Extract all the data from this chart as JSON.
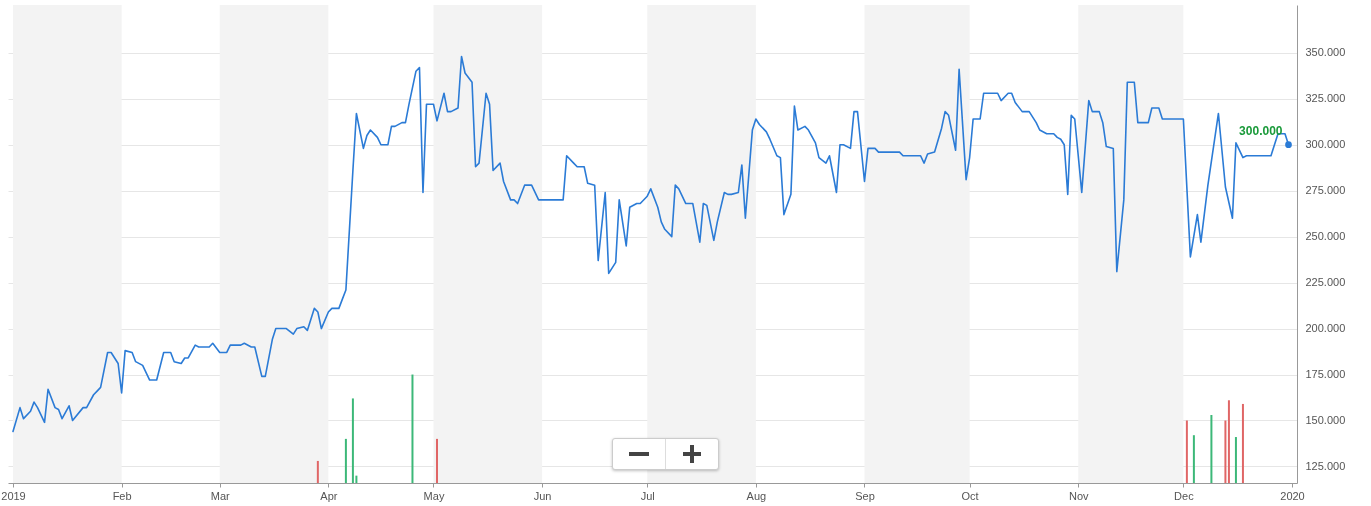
{
  "chart_data": {
    "type": "line",
    "grid": "y",
    "xlim": [
      "2019-01-01",
      "2020-01-01"
    ],
    "xticks": [
      {
        "value": "2019-01-01",
        "label": "2019"
      },
      {
        "value": "2019-02-01",
        "label": "Feb"
      },
      {
        "value": "2019-03-01",
        "label": "Mar"
      },
      {
        "value": "2019-04-01",
        "label": "Apr"
      },
      {
        "value": "2019-05-01",
        "label": "May"
      },
      {
        "value": "2019-06-01",
        "label": "Jun"
      },
      {
        "value": "2019-07-01",
        "label": "Jul"
      },
      {
        "value": "2019-08-01",
        "label": "Aug"
      },
      {
        "value": "2019-09-01",
        "label": "Sep"
      },
      {
        "value": "2019-10-01",
        "label": "Oct"
      },
      {
        "value": "2019-11-01",
        "label": "Nov"
      },
      {
        "value": "2019-12-01",
        "label": "Dec"
      },
      {
        "value": "2020-01-01",
        "label": "2020"
      }
    ],
    "ylim": [
      116,
      376
    ],
    "yticks": [
      {
        "value": 125,
        "label": "125.000"
      },
      {
        "value": 150,
        "label": "150.000"
      },
      {
        "value": 175,
        "label": "175.000"
      },
      {
        "value": 200,
        "label": "200.000"
      },
      {
        "value": 225,
        "label": "225.000"
      },
      {
        "value": 250,
        "label": "250.000"
      },
      {
        "value": 275,
        "label": "275.000"
      },
      {
        "value": 300,
        "label": "300.000"
      },
      {
        "value": 325,
        "label": "325.000"
      },
      {
        "value": 350,
        "label": "350.000"
      }
    ],
    "bands": [
      {
        "axis": "x",
        "from": "2019-01-01",
        "to": "2019-02-01",
        "color": "#f3f3f3"
      },
      {
        "axis": "x",
        "from": "2019-03-01",
        "to": "2019-04-01",
        "color": "#f3f3f3"
      },
      {
        "axis": "x",
        "from": "2019-05-01",
        "to": "2019-06-01",
        "color": "#f3f3f3"
      },
      {
        "axis": "x",
        "from": "2019-07-01",
        "to": "2019-08-01",
        "color": "#f3f3f3"
      },
      {
        "axis": "x",
        "from": "2019-09-01",
        "to": "2019-10-01",
        "color": "#f3f3f3"
      },
      {
        "axis": "x",
        "from": "2019-11-01",
        "to": "2019-12-01",
        "color": "#f3f3f3"
      }
    ],
    "annotations": [
      {
        "text": "300.000",
        "x": "2019-12-31",
        "y": 300
      }
    ],
    "series": [
      {
        "color": "#2b7bd6",
        "x": [
          "2019-01-01",
          "2019-01-03",
          "2019-01-04",
          "2019-01-06",
          "2019-01-07",
          "2019-01-08",
          "2019-01-10",
          "2019-01-11",
          "2019-01-13",
          "2019-01-14",
          "2019-01-15",
          "2019-01-17",
          "2019-01-18",
          "2019-01-21",
          "2019-01-22",
          "2019-01-24",
          "2019-01-25",
          "2019-01-26",
          "2019-01-28",
          "2019-01-29",
          "2019-01-31",
          "2019-02-01",
          "2019-02-02",
          "2019-02-04",
          "2019-02-05",
          "2019-02-07",
          "2019-02-09",
          "2019-02-11",
          "2019-02-13",
          "2019-02-15",
          "2019-02-16",
          "2019-02-18",
          "2019-02-19",
          "2019-02-20",
          "2019-02-22",
          "2019-02-23",
          "2019-02-26",
          "2019-02-27",
          "2019-03-01",
          "2019-03-03",
          "2019-03-04",
          "2019-03-07",
          "2019-03-08",
          "2019-03-10",
          "2019-03-11",
          "2019-03-13",
          "2019-03-14",
          "2019-03-16",
          "2019-03-17",
          "2019-03-20",
          "2019-03-22",
          "2019-03-23",
          "2019-03-25",
          "2019-03-26",
          "2019-03-28",
          "2019-03-29",
          "2019-03-30",
          "2019-04-01",
          "2019-04-02",
          "2019-04-04",
          "2019-04-05",
          "2019-04-06",
          "2019-04-08",
          "2019-04-09",
          "2019-04-11",
          "2019-04-12",
          "2019-04-13",
          "2019-04-15",
          "2019-04-16",
          "2019-04-18",
          "2019-04-19",
          "2019-04-20",
          "2019-04-22",
          "2019-04-23",
          "2019-04-24",
          "2019-04-26",
          "2019-04-27",
          "2019-04-28",
          "2019-04-29",
          "2019-05-01",
          "2019-05-02",
          "2019-05-04",
          "2019-05-05",
          "2019-05-06",
          "2019-05-08",
          "2019-05-09",
          "2019-05-10",
          "2019-05-12",
          "2019-05-13",
          "2019-05-14",
          "2019-05-16",
          "2019-05-17",
          "2019-05-18",
          "2019-05-20",
          "2019-05-21",
          "2019-05-23",
          "2019-05-24",
          "2019-05-25",
          "2019-05-27",
          "2019-05-29",
          "2019-05-31",
          "2019-06-07",
          "2019-06-08",
          "2019-06-10",
          "2019-06-11",
          "2019-06-13",
          "2019-06-14",
          "2019-06-16",
          "2019-06-17",
          "2019-06-19",
          "2019-06-20",
          "2019-06-22",
          "2019-06-23",
          "2019-06-25",
          "2019-06-26",
          "2019-06-28",
          "2019-06-29",
          "2019-07-01",
          "2019-07-02",
          "2019-07-04",
          "2019-07-05",
          "2019-07-06",
          "2019-07-08",
          "2019-07-09",
          "2019-07-10",
          "2019-07-12",
          "2019-07-14",
          "2019-07-16",
          "2019-07-17",
          "2019-07-18",
          "2019-07-20",
          "2019-07-21",
          "2019-07-23",
          "2019-07-24",
          "2019-07-25",
          "2019-07-27",
          "2019-07-28",
          "2019-07-29",
          "2019-07-31",
          "2019-08-01",
          "2019-08-02",
          "2019-08-04",
          "2019-08-05",
          "2019-08-07",
          "2019-08-08",
          "2019-08-09",
          "2019-08-11",
          "2019-08-12",
          "2019-08-13",
          "2019-08-15",
          "2019-08-16",
          "2019-08-18",
          "2019-08-19",
          "2019-08-21",
          "2019-08-22",
          "2019-08-24",
          "2019-08-25",
          "2019-08-26",
          "2019-08-28",
          "2019-08-29",
          "2019-08-30",
          "2019-09-01",
          "2019-09-02",
          "2019-09-04",
          "2019-09-05",
          "2019-09-11",
          "2019-09-12",
          "2019-09-17",
          "2019-09-18",
          "2019-09-19",
          "2019-09-21",
          "2019-09-23",
          "2019-09-24",
          "2019-09-25",
          "2019-09-27",
          "2019-09-28",
          "2019-09-30",
          "2019-10-01",
          "2019-10-02",
          "2019-10-04",
          "2019-10-05",
          "2019-10-09",
          "2019-10-10",
          "2019-10-12",
          "2019-10-13",
          "2019-10-14",
          "2019-10-16",
          "2019-10-18",
          "2019-10-20",
          "2019-10-21",
          "2019-10-23",
          "2019-10-25",
          "2019-10-26",
          "2019-10-27",
          "2019-10-28",
          "2019-10-29",
          "2019-10-30",
          "2019-10-31",
          "2019-11-02",
          "2019-11-04",
          "2019-11-05",
          "2019-11-07",
          "2019-11-08",
          "2019-11-09",
          "2019-11-11",
          "2019-11-12",
          "2019-11-14",
          "2019-11-15",
          "2019-11-17",
          "2019-11-18",
          "2019-11-21",
          "2019-11-22",
          "2019-11-24",
          "2019-11-25",
          "2019-12-01",
          "2019-12-03",
          "2019-12-05",
          "2019-12-06",
          "2019-12-08",
          "2019-12-11",
          "2019-12-13",
          "2019-12-15",
          "2019-12-16",
          "2019-12-18",
          "2019-12-19",
          "2019-12-26",
          "2019-12-28",
          "2019-12-30",
          "2019-12-31"
        ],
        "values": [
          144,
          157,
          151,
          155,
          160,
          157,
          149,
          167,
          157,
          156,
          151,
          158,
          150,
          157,
          157,
          164,
          166,
          168,
          187,
          187,
          181,
          165,
          188,
          187,
          182,
          180,
          172,
          172,
          187,
          187,
          182,
          181,
          184,
          184,
          191,
          190,
          190,
          192,
          187,
          187,
          191,
          191,
          192,
          190,
          190,
          174,
          174,
          194,
          200,
          200,
          197,
          200,
          201,
          199,
          211,
          209,
          200,
          209,
          211,
          211,
          216,
          221,
          286,
          317,
          298,
          305,
          308,
          304,
          300,
          300,
          310,
          310,
          312,
          312,
          322,
          340,
          342,
          274,
          322,
          322,
          313,
          328,
          318,
          318,
          320,
          348,
          339,
          334,
          288,
          290,
          328,
          322,
          286,
          290,
          280,
          270,
          270,
          268,
          278,
          278,
          270,
          270,
          294,
          290,
          288,
          288,
          279,
          278,
          237,
          274,
          230,
          236,
          270,
          245,
          266,
          268,
          268,
          272,
          276,
          266,
          258,
          254,
          250,
          278,
          276,
          268,
          268,
          247,
          268,
          267,
          248,
          258,
          274,
          273,
          273,
          274,
          289,
          260,
          308,
          314,
          311,
          307,
          303,
          294,
          293,
          262,
          273,
          321,
          308,
          310,
          308,
          301,
          293,
          290,
          294,
          274,
          300,
          300,
          298,
          318,
          318,
          280,
          298,
          298,
          296,
          296,
          294,
          294,
          290,
          295,
          296,
          309,
          318,
          316,
          297,
          341,
          281,
          293,
          314,
          314,
          328,
          328,
          324,
          328,
          328,
          323,
          318,
          318,
          312,
          308,
          306,
          306,
          304,
          303,
          300,
          273,
          316,
          314,
          274,
          324,
          318,
          318,
          312,
          299,
          298,
          231,
          270,
          334,
          334,
          312,
          312,
          320,
          320,
          314,
          314,
          239,
          262,
          247,
          278,
          317,
          277,
          260,
          301,
          293,
          294,
          294,
          306,
          306,
          300
        ]
      },
      {
        "type": "bar",
        "x": [
          "2019-03-29",
          "2019-04-06",
          "2019-04-08",
          "2019-04-09",
          "2019-04-25",
          "2019-05-02",
          "2019-12-02",
          "2019-12-04",
          "2019-12-09",
          "2019-12-13",
          "2019-12-14",
          "2019-12-16",
          "2019-12-18"
        ],
        "values": [
          128,
          140,
          162,
          120,
          175,
          140,
          150,
          142,
          153,
          150,
          161,
          141,
          159
        ],
        "colors": [
          "#e06666",
          "#3cb878",
          "#3cb878",
          "#3cb878",
          "#3cb878",
          "#e06666",
          "#e06666",
          "#3cb878",
          "#3cb878",
          "#e06666",
          "#e06666",
          "#3cb878",
          "#e06666"
        ]
      }
    ]
  }
}
